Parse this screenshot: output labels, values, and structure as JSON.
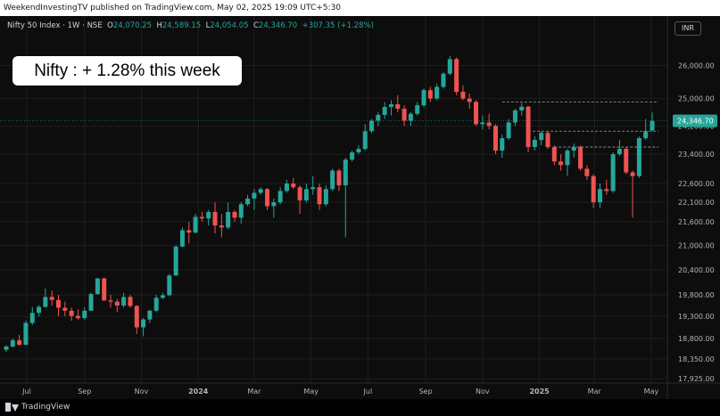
{
  "header": {
    "publisher": "WeekendInvestingTV published on TradingView.com, May 02, 2025 19:09 UTC+5:30"
  },
  "legend": {
    "symbol": "Nifty 50 Index · 1W · NSE",
    "o_label": "O",
    "o_value": "24,070.25",
    "h_label": "H",
    "h_value": "24,589.15",
    "l_label": "L",
    "l_value": "24,054.05",
    "c_label": "C",
    "c_value": "24,346.70",
    "change": "+307.35 (+1.28%)"
  },
  "currency": "INR",
  "callout": "Nifty : + 1.28% this week",
  "footer": {
    "brand": "TradingView"
  },
  "colors": {
    "up": "#26a69a",
    "down": "#ef5350",
    "background": "#0d0d0d",
    "grid": "#1e1e1e"
  },
  "chart_data": {
    "type": "candlestick",
    "title": "Nifty 50 Index",
    "interval": "1W",
    "exchange": "NSE",
    "currency": "INR",
    "y_scale": "log",
    "ylim": [
      17925,
      26600
    ],
    "y_ticks": [
      "26,000.00",
      "25,000.00",
      "24,200.00",
      "23,400.00",
      "22,600.00",
      "22,100.00",
      "21,600.00",
      "21,000.00",
      "20,400.00",
      "19,800.00",
      "19,300.00",
      "18,800.00",
      "18,350.00",
      "17,925.00"
    ],
    "y_tick_values": [
      26000,
      25000,
      24200,
      23400,
      22600,
      22100,
      21600,
      21000,
      20400,
      19800,
      19300,
      18800,
      18350,
      17925
    ],
    "x_ticks": [
      "Jul",
      "Sep",
      "Nov",
      "2024",
      "Mar",
      "May",
      "Jul",
      "Sep",
      "Nov",
      "2025",
      "Mar",
      "May"
    ],
    "x_tick_dates": [
      "2023-07-01",
      "2023-09-01",
      "2023-11-01",
      "2024-01-01",
      "2024-03-01",
      "2024-05-01",
      "2024-07-01",
      "2024-09-01",
      "2024-11-01",
      "2025-01-01",
      "2025-03-01",
      "2025-05-01"
    ],
    "last_price": "24,346.70",
    "last_price_value": 24346.7,
    "dashed_levels": [
      24900,
      24050,
      23600
    ],
    "candles": [
      {
        "date": "2023-06-09",
        "o": 18550,
        "h": 18650,
        "l": 18500,
        "c": 18620
      },
      {
        "date": "2023-06-16",
        "o": 18620,
        "h": 18800,
        "l": 18600,
        "c": 18760
      },
      {
        "date": "2023-06-23",
        "o": 18760,
        "h": 18880,
        "l": 18640,
        "c": 18660
      },
      {
        "date": "2023-06-30",
        "o": 18660,
        "h": 19200,
        "l": 18650,
        "c": 19150
      },
      {
        "date": "2023-07-07",
        "o": 19150,
        "h": 19520,
        "l": 19100,
        "c": 19380
      },
      {
        "date": "2023-07-14",
        "o": 19380,
        "h": 19560,
        "l": 19300,
        "c": 19520
      },
      {
        "date": "2023-07-21",
        "o": 19520,
        "h": 19950,
        "l": 19500,
        "c": 19750
      },
      {
        "date": "2023-07-28",
        "o": 19750,
        "h": 19900,
        "l": 19550,
        "c": 19680
      },
      {
        "date": "2023-08-04",
        "o": 19680,
        "h": 19800,
        "l": 19300,
        "c": 19500
      },
      {
        "date": "2023-08-11",
        "o": 19500,
        "h": 19640,
        "l": 19300,
        "c": 19430
      },
      {
        "date": "2023-08-18",
        "o": 19430,
        "h": 19500,
        "l": 19200,
        "c": 19310
      },
      {
        "date": "2023-08-25",
        "o": 19310,
        "h": 19460,
        "l": 19230,
        "c": 19260
      },
      {
        "date": "2023-09-01",
        "o": 19260,
        "h": 19500,
        "l": 19220,
        "c": 19430
      },
      {
        "date": "2023-09-08",
        "o": 19430,
        "h": 19850,
        "l": 19420,
        "c": 19820
      },
      {
        "date": "2023-09-15",
        "o": 19820,
        "h": 20200,
        "l": 19800,
        "c": 20190
      },
      {
        "date": "2023-09-22",
        "o": 20190,
        "h": 20210,
        "l": 19650,
        "c": 19670
      },
      {
        "date": "2023-09-29",
        "o": 19670,
        "h": 19800,
        "l": 19500,
        "c": 19640
      },
      {
        "date": "2023-10-06",
        "o": 19640,
        "h": 19700,
        "l": 19400,
        "c": 19550
      },
      {
        "date": "2023-10-13",
        "o": 19550,
        "h": 19850,
        "l": 19500,
        "c": 19750
      },
      {
        "date": "2023-10-20",
        "o": 19750,
        "h": 19800,
        "l": 19500,
        "c": 19540
      },
      {
        "date": "2023-10-27",
        "o": 19540,
        "h": 19560,
        "l": 18900,
        "c": 19050
      },
      {
        "date": "2023-11-03",
        "o": 19050,
        "h": 19260,
        "l": 18850,
        "c": 19230
      },
      {
        "date": "2023-11-10",
        "o": 19230,
        "h": 19450,
        "l": 19150,
        "c": 19430
      },
      {
        "date": "2023-11-17",
        "o": 19430,
        "h": 19800,
        "l": 19400,
        "c": 19730
      },
      {
        "date": "2023-11-24",
        "o": 19730,
        "h": 19850,
        "l": 19700,
        "c": 19790
      },
      {
        "date": "2023-12-01",
        "o": 19790,
        "h": 20300,
        "l": 19770,
        "c": 20260
      },
      {
        "date": "2023-12-08",
        "o": 20260,
        "h": 21000,
        "l": 20250,
        "c": 20970
      },
      {
        "date": "2023-12-15",
        "o": 20970,
        "h": 21450,
        "l": 20950,
        "c": 21380
      },
      {
        "date": "2023-12-22",
        "o": 21380,
        "h": 21590,
        "l": 21050,
        "c": 21320
      },
      {
        "date": "2023-12-29",
        "o": 21320,
        "h": 21800,
        "l": 21300,
        "c": 21720
      },
      {
        "date": "2024-01-05",
        "o": 21720,
        "h": 21850,
        "l": 21600,
        "c": 21680
      },
      {
        "date": "2024-01-12",
        "o": 21680,
        "h": 21900,
        "l": 21500,
        "c": 21850
      },
      {
        "date": "2024-01-19",
        "o": 21850,
        "h": 22100,
        "l": 21300,
        "c": 21500
      },
      {
        "date": "2024-01-26",
        "o": 21500,
        "h": 21800,
        "l": 21200,
        "c": 21450
      },
      {
        "date": "2024-02-02",
        "o": 21450,
        "h": 22100,
        "l": 21400,
        "c": 21850
      },
      {
        "date": "2024-02-09",
        "o": 21850,
        "h": 21900,
        "l": 21600,
        "c": 21700
      },
      {
        "date": "2024-02-16",
        "o": 21700,
        "h": 22100,
        "l": 21550,
        "c": 22050
      },
      {
        "date": "2024-02-23",
        "o": 22050,
        "h": 22300,
        "l": 22000,
        "c": 22200
      },
      {
        "date": "2024-03-01",
        "o": 22200,
        "h": 22450,
        "l": 21900,
        "c": 22350
      },
      {
        "date": "2024-03-08",
        "o": 22350,
        "h": 22500,
        "l": 22300,
        "c": 22450
      },
      {
        "date": "2024-03-15",
        "o": 22450,
        "h": 22480,
        "l": 21900,
        "c": 22000
      },
      {
        "date": "2024-03-22",
        "o": 22000,
        "h": 22200,
        "l": 21700,
        "c": 22100
      },
      {
        "date": "2024-03-29",
        "o": 22100,
        "h": 22500,
        "l": 22050,
        "c": 22400
      },
      {
        "date": "2024-04-05",
        "o": 22400,
        "h": 22700,
        "l": 22350,
        "c": 22600
      },
      {
        "date": "2024-04-12",
        "o": 22600,
        "h": 22750,
        "l": 22450,
        "c": 22500
      },
      {
        "date": "2024-04-19",
        "o": 22500,
        "h": 22550,
        "l": 21800,
        "c": 22150
      },
      {
        "date": "2024-04-26",
        "o": 22150,
        "h": 22600,
        "l": 22100,
        "c": 22450
      },
      {
        "date": "2024-05-03",
        "o": 22450,
        "h": 22800,
        "l": 22300,
        "c": 22500
      },
      {
        "date": "2024-05-10",
        "o": 22500,
        "h": 22600,
        "l": 21900,
        "c": 22050
      },
      {
        "date": "2024-05-17",
        "o": 22050,
        "h": 22550,
        "l": 22000,
        "c": 22450
      },
      {
        "date": "2024-05-24",
        "o": 22450,
        "h": 23000,
        "l": 22400,
        "c": 22950
      },
      {
        "date": "2024-05-31",
        "o": 22950,
        "h": 23000,
        "l": 22400,
        "c": 22550
      },
      {
        "date": "2024-06-07",
        "o": 22550,
        "h": 23300,
        "l": 21200,
        "c": 23250
      },
      {
        "date": "2024-06-14",
        "o": 23250,
        "h": 23500,
        "l": 23200,
        "c": 23450
      },
      {
        "date": "2024-06-21",
        "o": 23450,
        "h": 23650,
        "l": 23400,
        "c": 23550
      },
      {
        "date": "2024-06-28",
        "o": 23550,
        "h": 24250,
        "l": 23500,
        "c": 24050
      },
      {
        "date": "2024-07-05",
        "o": 24050,
        "h": 24400,
        "l": 24000,
        "c": 24350
      },
      {
        "date": "2024-07-12",
        "o": 24350,
        "h": 24600,
        "l": 24200,
        "c": 24520
      },
      {
        "date": "2024-07-19",
        "o": 24520,
        "h": 24900,
        "l": 24400,
        "c": 24750
      },
      {
        "date": "2024-07-26",
        "o": 24750,
        "h": 24950,
        "l": 24500,
        "c": 24830
      },
      {
        "date": "2024-08-02",
        "o": 24830,
        "h": 25100,
        "l": 24600,
        "c": 24700
      },
      {
        "date": "2024-08-09",
        "o": 24700,
        "h": 24800,
        "l": 24200,
        "c": 24350
      },
      {
        "date": "2024-08-16",
        "o": 24350,
        "h": 24600,
        "l": 24200,
        "c": 24550
      },
      {
        "date": "2024-08-23",
        "o": 24550,
        "h": 24900,
        "l": 24500,
        "c": 24800
      },
      {
        "date": "2024-08-30",
        "o": 24800,
        "h": 25300,
        "l": 24750,
        "c": 25250
      },
      {
        "date": "2024-09-06",
        "o": 25250,
        "h": 25350,
        "l": 24900,
        "c": 25000
      },
      {
        "date": "2024-09-13",
        "o": 25000,
        "h": 25450,
        "l": 24950,
        "c": 25350
      },
      {
        "date": "2024-09-20",
        "o": 25350,
        "h": 25800,
        "l": 25300,
        "c": 25750
      },
      {
        "date": "2024-09-27",
        "o": 25750,
        "h": 26300,
        "l": 25700,
        "c": 26200
      },
      {
        "date": "2024-10-04",
        "o": 26200,
        "h": 26250,
        "l": 25100,
        "c": 25200
      },
      {
        "date": "2024-10-11",
        "o": 25200,
        "h": 25400,
        "l": 24950,
        "c": 25000
      },
      {
        "date": "2024-10-18",
        "o": 25000,
        "h": 25150,
        "l": 24700,
        "c": 24900
      },
      {
        "date": "2024-10-25",
        "o": 24900,
        "h": 24950,
        "l": 24200,
        "c": 24250
      },
      {
        "date": "2024-11-01",
        "o": 24250,
        "h": 24500,
        "l": 24100,
        "c": 24300
      },
      {
        "date": "2024-11-08",
        "o": 24300,
        "h": 24550,
        "l": 24100,
        "c": 24200
      },
      {
        "date": "2024-11-15",
        "o": 24200,
        "h": 24250,
        "l": 23400,
        "c": 23500
      },
      {
        "date": "2024-11-22",
        "o": 23500,
        "h": 23950,
        "l": 23300,
        "c": 23850
      },
      {
        "date": "2024-11-29",
        "o": 23850,
        "h": 24400,
        "l": 23800,
        "c": 24300
      },
      {
        "date": "2024-12-06",
        "o": 24300,
        "h": 24700,
        "l": 24200,
        "c": 24650
      },
      {
        "date": "2024-12-13",
        "o": 24650,
        "h": 24870,
        "l": 24500,
        "c": 24760
      },
      {
        "date": "2024-12-20",
        "o": 24760,
        "h": 24780,
        "l": 23450,
        "c": 23600
      },
      {
        "date": "2024-12-27",
        "o": 23600,
        "h": 23900,
        "l": 23500,
        "c": 23800
      },
      {
        "date": "2025-01-03",
        "o": 23800,
        "h": 24050,
        "l": 23650,
        "c": 24000
      },
      {
        "date": "2025-01-10",
        "o": 24000,
        "h": 24050,
        "l": 23550,
        "c": 23600
      },
      {
        "date": "2025-01-17",
        "o": 23600,
        "h": 23650,
        "l": 23100,
        "c": 23200
      },
      {
        "date": "2025-01-24",
        "o": 23200,
        "h": 23400,
        "l": 22950,
        "c": 23100
      },
      {
        "date": "2025-01-31",
        "o": 23100,
        "h": 23550,
        "l": 22800,
        "c": 23500
      },
      {
        "date": "2025-02-07",
        "o": 23500,
        "h": 23700,
        "l": 23300,
        "c": 23600
      },
      {
        "date": "2025-02-14",
        "o": 23600,
        "h": 23650,
        "l": 22950,
        "c": 23000
      },
      {
        "date": "2025-02-21",
        "o": 23000,
        "h": 23100,
        "l": 22700,
        "c": 22800
      },
      {
        "date": "2025-02-28",
        "o": 22800,
        "h": 22850,
        "l": 21950,
        "c": 22100
      },
      {
        "date": "2025-03-07",
        "o": 22100,
        "h": 22600,
        "l": 21950,
        "c": 22450
      },
      {
        "date": "2025-03-14",
        "o": 22450,
        "h": 22700,
        "l": 22300,
        "c": 22400
      },
      {
        "date": "2025-03-21",
        "o": 22400,
        "h": 23450,
        "l": 22350,
        "c": 23400
      },
      {
        "date": "2025-03-28",
        "o": 23400,
        "h": 23800,
        "l": 23350,
        "c": 23550
      },
      {
        "date": "2025-04-04",
        "o": 23550,
        "h": 23600,
        "l": 22850,
        "c": 22900
      },
      {
        "date": "2025-04-11",
        "o": 22900,
        "h": 22950,
        "l": 21700,
        "c": 22800
      },
      {
        "date": "2025-04-18",
        "o": 22800,
        "h": 23900,
        "l": 22750,
        "c": 23850
      },
      {
        "date": "2025-04-25",
        "o": 23850,
        "h": 24400,
        "l": 23800,
        "c": 24050
      },
      {
        "date": "2025-05-02",
        "o": 24070.25,
        "h": 24589.15,
        "l": 24054.05,
        "c": 24346.7
      }
    ]
  }
}
